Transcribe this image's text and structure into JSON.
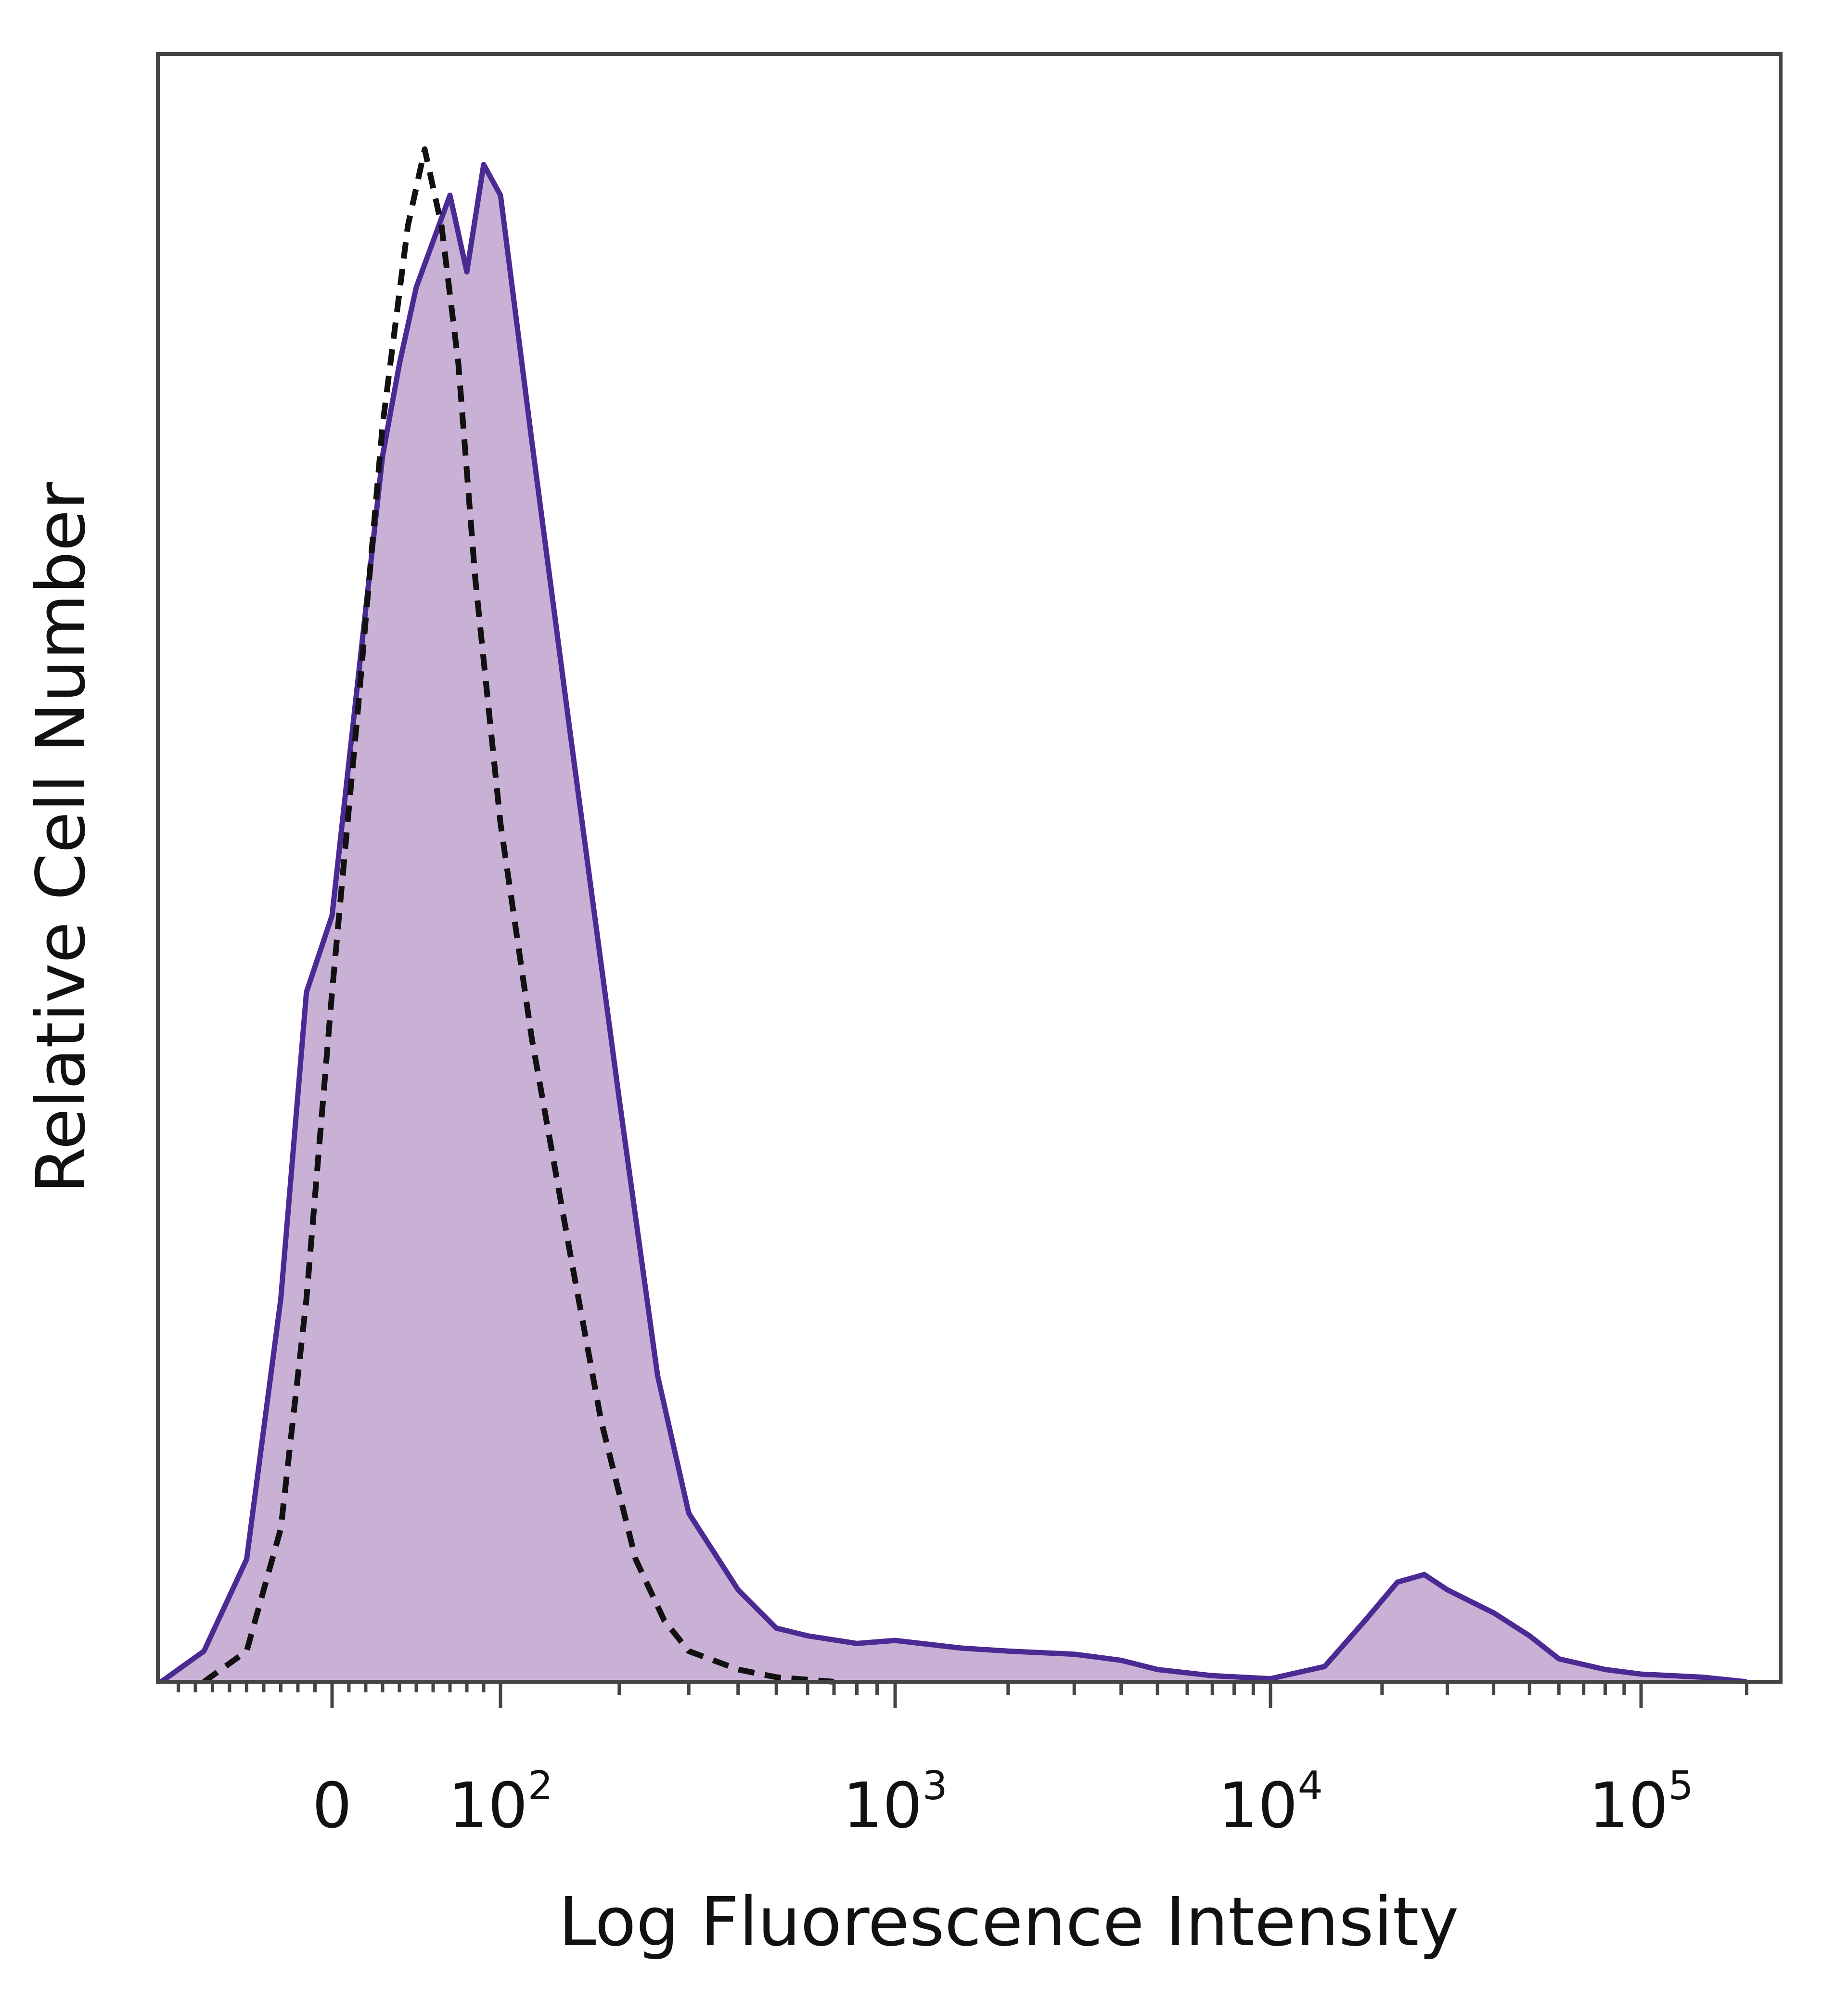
{
  "chart_data": {
    "type": "area",
    "xlabel": "Log Fluorescence Intensity",
    "ylabel": "Relative Cell Number",
    "x_scale": "biexponential",
    "xlim": [
      -100,
      250000
    ],
    "ylim": [
      0,
      1
    ],
    "grid": false,
    "legend": "none",
    "x_tick_labels": [
      {
        "value": 0,
        "base": "0",
        "exp": ""
      },
      {
        "value": 100,
        "base": "10",
        "exp": "2"
      },
      {
        "value": 1000,
        "base": "10",
        "exp": "3"
      },
      {
        "value": 10000,
        "base": "10",
        "exp": "4"
      },
      {
        "value": 100000,
        "base": "10",
        "exp": "5"
      }
    ],
    "series": [
      {
        "style": "filled",
        "color": "#4b2a93",
        "fill": "#c9b1d6",
        "x": [
          -100,
          -75,
          -50,
          -30,
          -15,
          0,
          10,
          20,
          30,
          40,
          50,
          60,
          70,
          80,
          90,
          100,
          120,
          150,
          200,
          250,
          300,
          400,
          500,
          600,
          800,
          1000,
          1500,
          2000,
          3000,
          4000,
          5000,
          7000,
          10000,
          14000,
          18000,
          22000,
          26000,
          30000,
          40000,
          50000,
          60000,
          80000,
          100000,
          150000,
          200000
        ],
        "y": [
          0.0,
          0.02,
          0.08,
          0.25,
          0.45,
          0.5,
          0.6,
          0.7,
          0.8,
          0.86,
          0.91,
          0.94,
          0.97,
          0.92,
          0.99,
          0.97,
          0.81,
          0.62,
          0.38,
          0.2,
          0.11,
          0.06,
          0.035,
          0.03,
          0.025,
          0.027,
          0.022,
          0.02,
          0.018,
          0.014,
          0.008,
          0.004,
          0.002,
          0.01,
          0.04,
          0.065,
          0.07,
          0.06,
          0.045,
          0.03,
          0.015,
          0.008,
          0.005,
          0.003,
          0.0
        ]
      },
      {
        "style": "dashed",
        "color": "#111111",
        "x": [
          -75,
          -50,
          -30,
          -15,
          0,
          15,
          30,
          45,
          55,
          65,
          75,
          85,
          100,
          120,
          150,
          180,
          220,
          260,
          300,
          400,
          500,
          700
        ],
        "y": [
          0.0,
          0.02,
          0.1,
          0.25,
          0.45,
          0.63,
          0.82,
          0.95,
          1.0,
          0.95,
          0.86,
          0.72,
          0.56,
          0.42,
          0.28,
          0.17,
          0.08,
          0.04,
          0.02,
          0.008,
          0.003,
          0.0
        ]
      }
    ]
  }
}
